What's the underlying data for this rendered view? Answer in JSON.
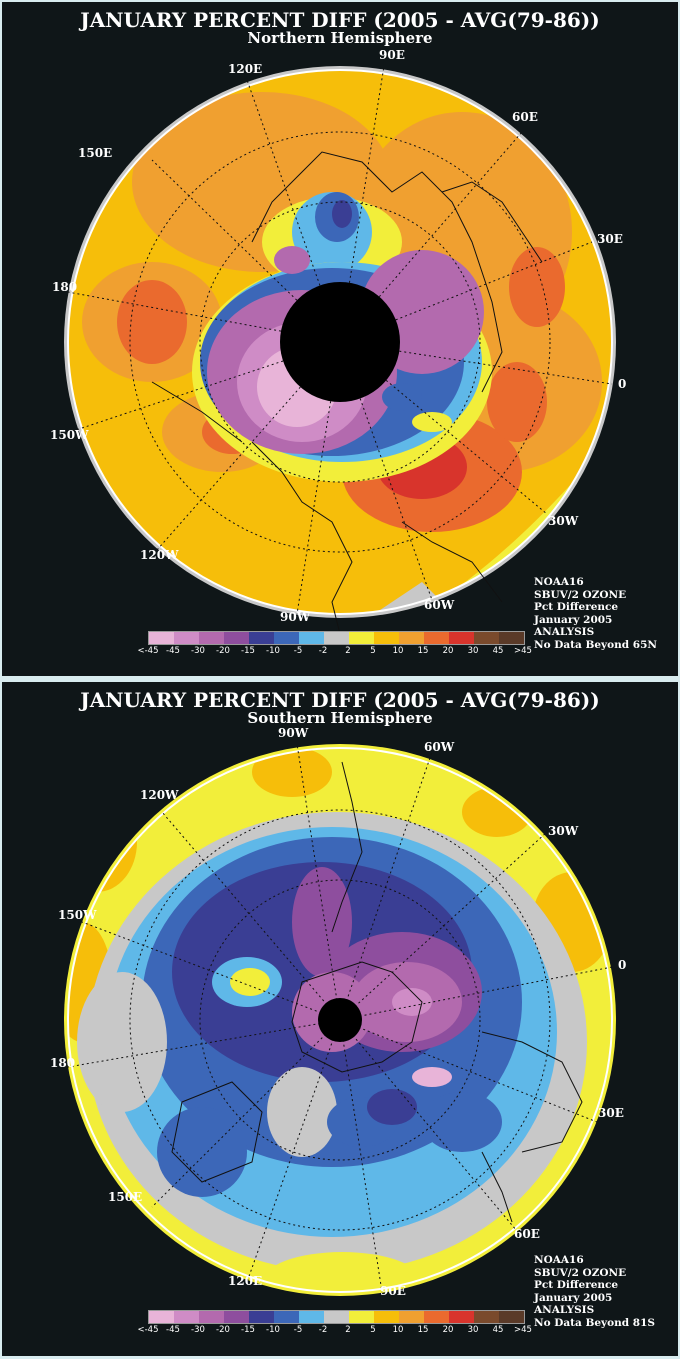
{
  "north": {
    "title": "JANUARY PERCENT DIFF (2005 - AVG(79-86))",
    "subtitle": "Northern Hemisphere",
    "longitude_labels": [
      "90E",
      "60E",
      "30E",
      "0",
      "30W",
      "60W",
      "90W",
      "120W",
      "150W",
      "180",
      "150E",
      "120E"
    ],
    "info": [
      "NOAA16",
      "SBUV/2 OZONE",
      "Pct Difference",
      "January 2005",
      "ANALYSIS",
      "No Data Beyond 65N"
    ]
  },
  "south": {
    "title": "JANUARY PERCENT DIFF (2005 - AVG(79-86))",
    "subtitle": "Southern Hemisphere",
    "longitude_labels": [
      "90W",
      "60W",
      "30W",
      "0",
      "30E",
      "60E",
      "90E",
      "120E",
      "150E",
      "180",
      "150W",
      "120W"
    ],
    "info": [
      "NOAA16",
      "SBUV/2 OZONE",
      "Pct Difference",
      "January 2005",
      "ANALYSIS",
      "No Data Beyond 81S"
    ]
  },
  "legend": {
    "ticks": [
      "<-45",
      "-45",
      "-30",
      "-20",
      "-15",
      "-10",
      "-5",
      "-2",
      "2",
      "5",
      "10",
      "15",
      "20",
      "30",
      "45",
      ">45"
    ],
    "colors": [
      "#e8b4d8",
      "#cf8cc6",
      "#b36aae",
      "#8e4e9e",
      "#3a3e94",
      "#3c67b8",
      "#5fb8e8",
      "#c8c8c8",
      "#f2ee3a",
      "#f6be0a",
      "#f0a030",
      "#ea6a2e",
      "#d8342c",
      "#7a4a2c",
      "#5a3a28"
    ]
  }
}
